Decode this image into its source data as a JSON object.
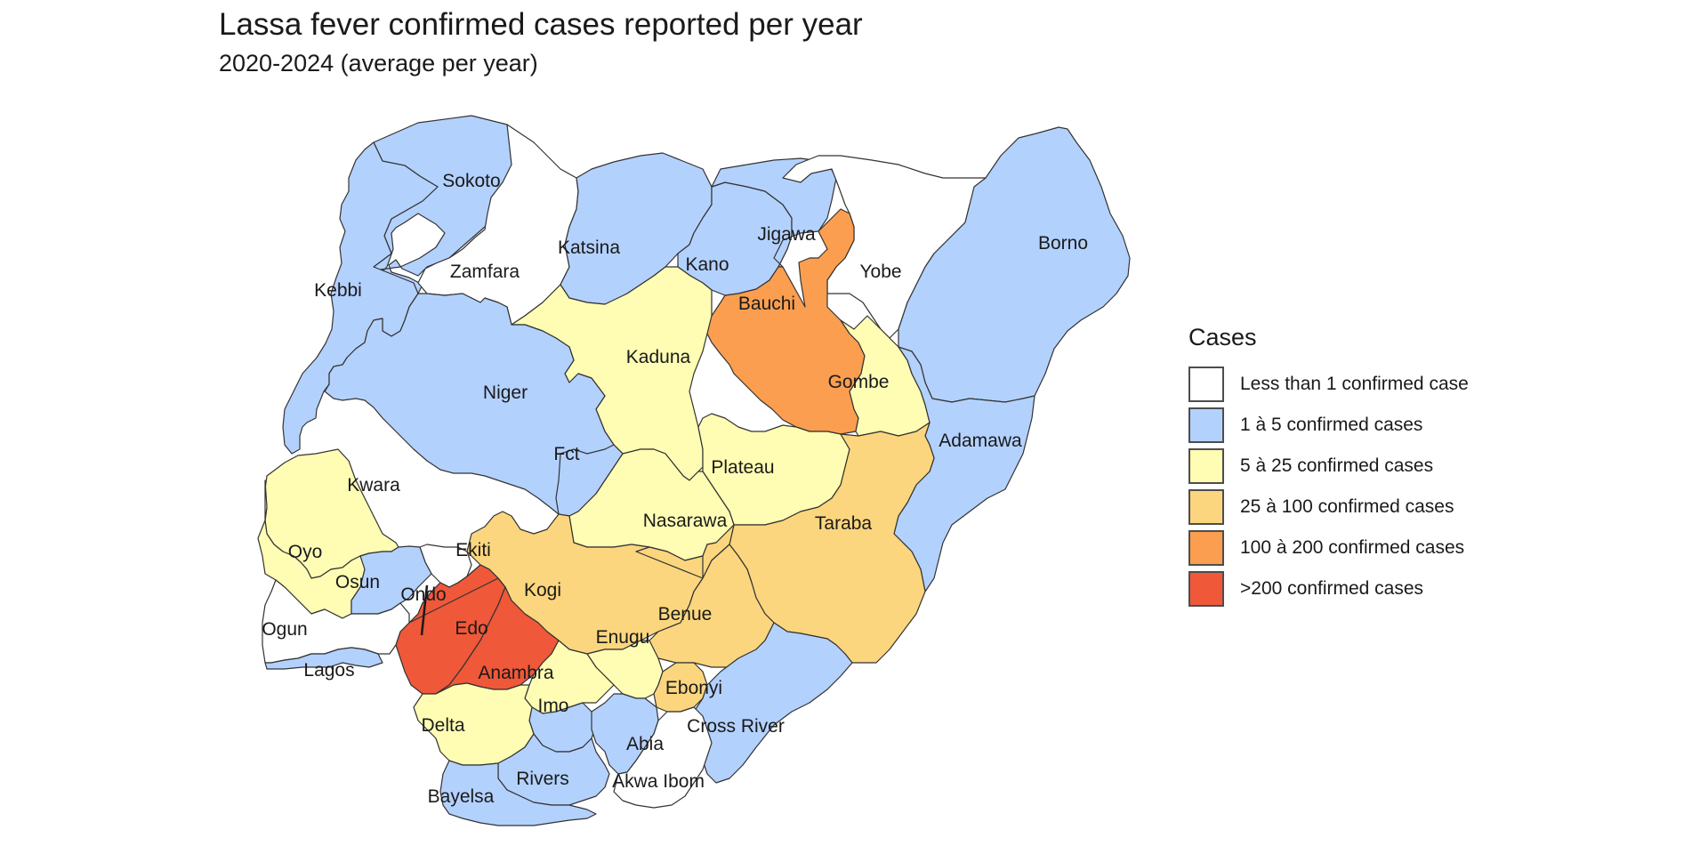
{
  "title": "Lassa fever confirmed cases reported per year",
  "subtitle": "2020-2024 (average per year)",
  "legend": {
    "title": "Cases",
    "items": [
      {
        "label": "Less than 1 confirmed case",
        "color": "#ffffff"
      },
      {
        "label": "1 à 5 confirmed cases",
        "color": "#b3d1fd"
      },
      {
        "label": "5 à 25 confirmed cases",
        "color": "#fffdb3"
      },
      {
        "label": "25 à 100 confirmed cases",
        "color": "#fbd67e"
      },
      {
        "label": "100 à 200 confirmed cases",
        "color": "#fb9e50"
      },
      {
        "label": ">200 confirmed cases",
        "color": "#ef5839"
      }
    ]
  },
  "states": [
    {
      "name": "Sokoto",
      "category": 1
    },
    {
      "name": "Zamfara",
      "category": 0
    },
    {
      "name": "Kebbi",
      "category": 1
    },
    {
      "name": "Katsina",
      "category": 1
    },
    {
      "name": "Kano",
      "category": 1
    },
    {
      "name": "Jigawa",
      "category": 1
    },
    {
      "name": "Yobe",
      "category": 0
    },
    {
      "name": "Borno",
      "category": 1
    },
    {
      "name": "Bauchi",
      "category": 4
    },
    {
      "name": "Kaduna",
      "category": 2
    },
    {
      "name": "Gombe",
      "category": 2
    },
    {
      "name": "Niger",
      "category": 1
    },
    {
      "name": "Adamawa",
      "category": 1
    },
    {
      "name": "Fct",
      "category": 1
    },
    {
      "name": "Plateau",
      "category": 2
    },
    {
      "name": "Kwara",
      "category": 2
    },
    {
      "name": "Nasarawa",
      "category": 2
    },
    {
      "name": "Taraba",
      "category": 3
    },
    {
      "name": "Oyo",
      "category": 2
    },
    {
      "name": "Ekiti",
      "category": 0
    },
    {
      "name": "Osun",
      "category": 1
    },
    {
      "name": "Kogi",
      "category": 3
    },
    {
      "name": "Ondo",
      "category": 5
    },
    {
      "name": "Benue",
      "category": 3
    },
    {
      "name": "Ogun",
      "category": 0
    },
    {
      "name": "Edo",
      "category": 5
    },
    {
      "name": "Enugu",
      "category": 2
    },
    {
      "name": "Lagos",
      "category": 1
    },
    {
      "name": "Anambra",
      "category": 2
    },
    {
      "name": "Ebonyi",
      "category": 3
    },
    {
      "name": "Imo",
      "category": 1
    },
    {
      "name": "Delta",
      "category": 2
    },
    {
      "name": "Cross River",
      "category": 1
    },
    {
      "name": "Abia",
      "category": 1
    },
    {
      "name": "Rivers",
      "category": 1
    },
    {
      "name": "Akwa Ibom",
      "category": 0
    },
    {
      "name": "Bayelsa",
      "category": 1
    }
  ]
}
